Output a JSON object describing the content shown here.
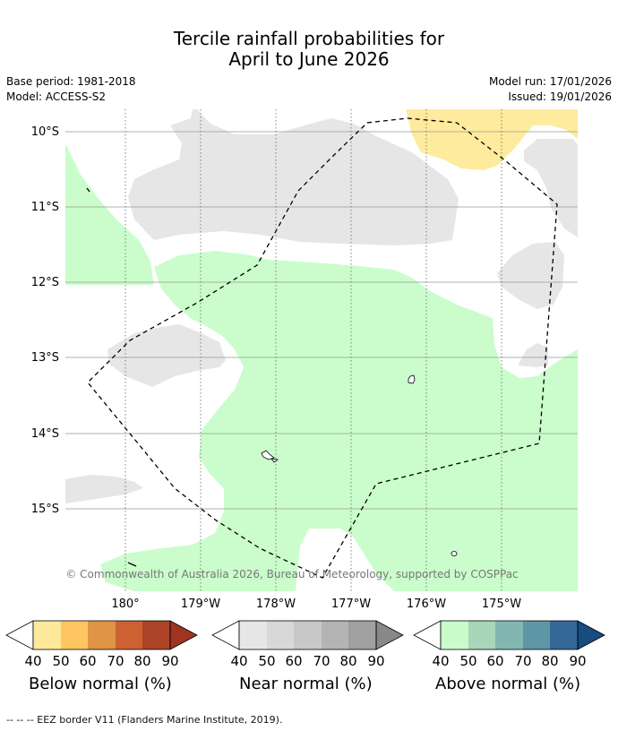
{
  "title_line1": "Tercile rainfall probabilities for",
  "title_line2": "April to June 2026",
  "base_period": "Base period: 1981-2018",
  "model": "Model: ACCESS-S2",
  "model_run": "Model run: 17/01/2026",
  "issued": "Issued: 19/01/2026",
  "lat_labels": [
    "10°S",
    "11°S",
    "12°S",
    "13°S",
    "14°S",
    "15°S"
  ],
  "lon_labels": [
    "180°",
    "179°W",
    "178°W",
    "177°W",
    "176°W",
    "175°W"
  ],
  "copyright": "© Commonwealth of Australia 2026, Bureau of Meteorology, supported by COSPPac",
  "legends": [
    {
      "title": "Below normal (%)",
      "ticks": [
        "40",
        "50",
        "60",
        "70",
        "80",
        "90"
      ],
      "colors": [
        "#fee99a",
        "#fdc661",
        "#e09446",
        "#cd6132",
        "#ac4326",
        "#9e3421"
      ]
    },
    {
      "title": "Near normal (%)",
      "ticks": [
        "40",
        "50",
        "60",
        "70",
        "80",
        "90"
      ],
      "colors": [
        "#e6e6e6",
        "#d8d8d8",
        "#c8c8c8",
        "#b4b4b4",
        "#a0a0a0",
        "#888888"
      ]
    },
    {
      "title": "Above normal (%)",
      "ticks": [
        "40",
        "50",
        "60",
        "70",
        "80",
        "90"
      ],
      "colors": [
        "#c9fbcb",
        "#a7d7b8",
        "#82b6b1",
        "#5d97a6",
        "#346898",
        "#164c80"
      ]
    }
  ],
  "footer": "--  --  -- EEZ border V11 (Flanders Marine Institute, 2019).",
  "colors": {
    "below": "#feeb9e",
    "near": "#e6e6e6",
    "above": "#cafdcb"
  }
}
